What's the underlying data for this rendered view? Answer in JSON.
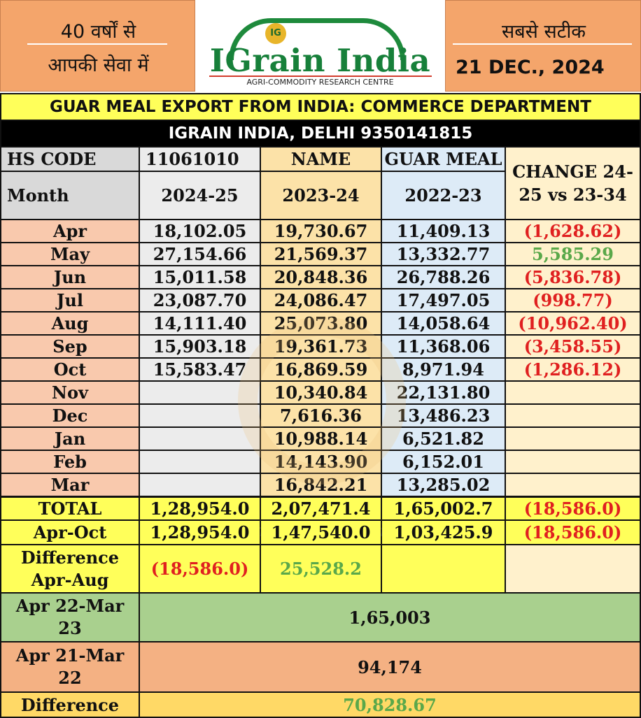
{
  "header": {
    "left_line1": "40 वर्षों से",
    "left_line2": "आपकी सेवा में",
    "right_line1": "सबसे सटीक",
    "right_date": "21 DEC., 2024",
    "logo_mark": "IG",
    "logo_name": "IGrain India",
    "logo_subtitle": "AGRI-COMMODITY RESEARCH CENTRE"
  },
  "title": "GUAR MEAL EXPORT FROM INDIA: COMMERCE DEPARTMENT",
  "subtitle": "IGRAIN INDIA, DELHI 9350141815",
  "head": {
    "hs_label": "HS CODE",
    "hs_code": "11061010",
    "name_label": "NAME",
    "name_value": "GUAR MEAL",
    "change_label": "CHANGE 24-25 vs 23-34",
    "month_label": "Month",
    "years": [
      "2024-25",
      "2023-24",
      "2022-23"
    ]
  },
  "rows": [
    {
      "month": "Apr",
      "y1": "18,102.05",
      "y2": "19,730.67",
      "y3": "11,409.13",
      "change": "(1,628.62)"
    },
    {
      "month": "May",
      "y1": "27,154.66",
      "y2": "21,569.37",
      "y3": "13,332.77",
      "change": "5,585.29"
    },
    {
      "month": "Jun",
      "y1": "15,011.58",
      "y2": "20,848.36",
      "y3": "26,788.26",
      "change": "(5,836.78)"
    },
    {
      "month": "Jul",
      "y1": "23,087.70",
      "y2": "24,086.47",
      "y3": "17,497.05",
      "change": "(998.77)"
    },
    {
      "month": "Aug",
      "y1": "14,111.40",
      "y2": "25,073.80",
      "y3": "14,058.64",
      "change": "(10,962.40)"
    },
    {
      "month": "Sep",
      "y1": "15,903.18",
      "y2": "19,361.73",
      "y3": "11,368.06",
      "change": "(3,458.55)"
    },
    {
      "month": "Oct",
      "y1": "15,583.47",
      "y2": "16,869.59",
      "y3": "8,971.94",
      "change": "(1,286.12)"
    },
    {
      "month": "Nov",
      "y1": "",
      "y2": "10,340.84",
      "y3": "22,131.80",
      "change": ""
    },
    {
      "month": "Dec",
      "y1": "",
      "y2": "7,616.36",
      "y3": "13,486.23",
      "change": ""
    },
    {
      "month": "Jan",
      "y1": "",
      "y2": "10,988.14",
      "y3": "6,521.82",
      "change": ""
    },
    {
      "month": "Feb",
      "y1": "",
      "y2": "14,143.90",
      "y3": "6,152.01",
      "change": ""
    },
    {
      "month": "Mar",
      "y1": "",
      "y2": "16,842.21",
      "y3": "13,285.02",
      "change": ""
    }
  ],
  "total": {
    "label": "TOTAL",
    "y1": "1,28,954.0",
    "y2": "2,07,471.4",
    "y3": "1,65,002.7",
    "change": "(18,586.0)"
  },
  "apr_oct": {
    "label": "Apr-Oct",
    "y1": "1,28,954.0",
    "y2": "1,47,540.0",
    "y3": "1,03,425.9",
    "change": "(18,586.0)"
  },
  "difference": {
    "label": "Difference Apr-Aug",
    "y1": "(18,586.0)",
    "y2": "25,528.2"
  },
  "summary": [
    {
      "label": "Apr 22-Mar 23",
      "value": "1,65,003"
    },
    {
      "label": "Apr 21-Mar 22",
      "value": "94,174"
    },
    {
      "label": "Difference",
      "value": "70,828.67"
    }
  ],
  "watermark_text": "IGrain India Pvt. Ltd.",
  "colors": {
    "orange_header": "#f4a56b",
    "yellow": "#ffff5a",
    "peach": "#f9c9ad",
    "light_gray": "#ececec",
    "light_orange": "#fce2a8",
    "light_blue": "#ddebf7",
    "light_yellow": "#fff1cc",
    "green_row": "#a9d08e",
    "orange_row": "#f4b183",
    "total_orange": "#ffd966",
    "negative": "#e02020",
    "positive": "#5aa84a"
  }
}
